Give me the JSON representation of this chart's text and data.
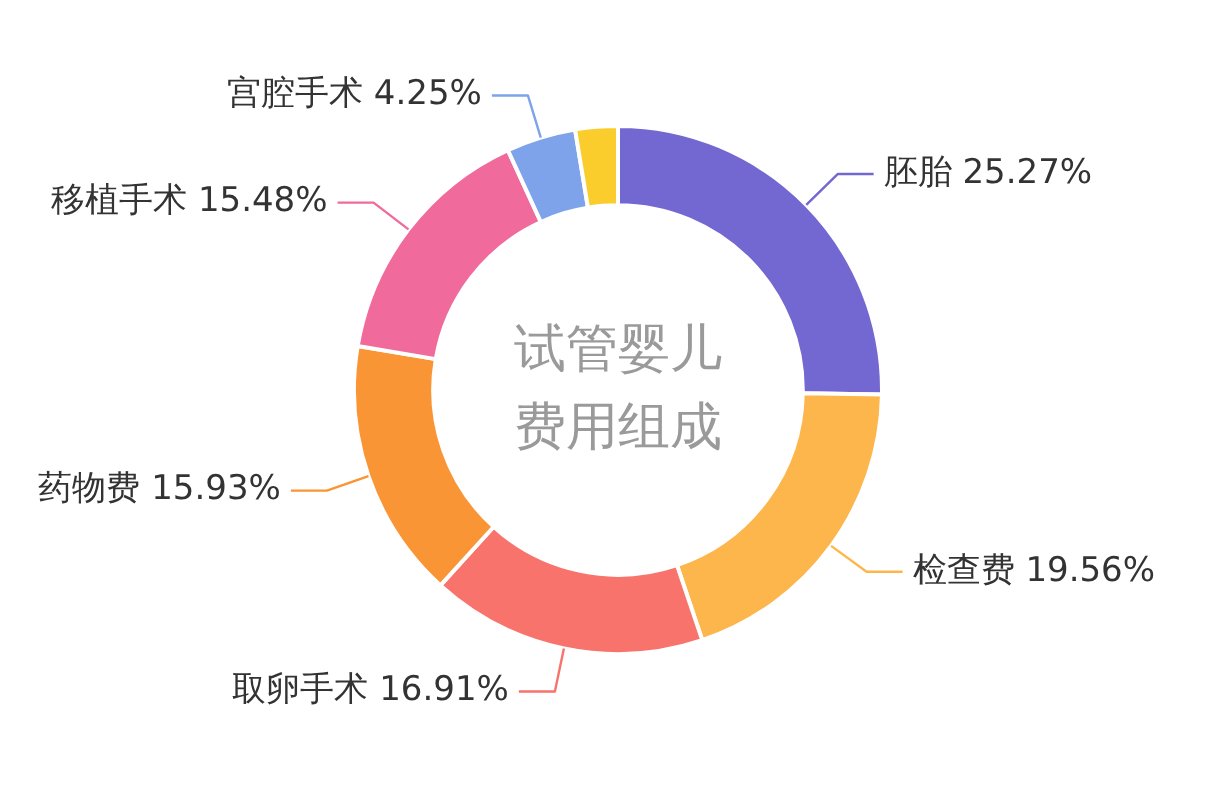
{
  "chart_data": {
    "type": "donut",
    "title": "试管婴儿费用组成",
    "categories": [
      "胚胎",
      "检查费",
      "取卵手术",
      "药物费",
      "移植手术",
      "宫腔手术",
      null
    ],
    "values": [
      25.27,
      19.56,
      16.91,
      15.93,
      15.48,
      4.25,
      2.6
    ],
    "colors": [
      "#7367d1",
      "#fdb64b",
      "#f7736c",
      "#fa9535",
      "#f06b9c",
      "#7ea3ea",
      "#fbcd2c"
    ],
    "value_labels": [
      "25.27%",
      "19.56%",
      "16.91%",
      "15.93%",
      "15.48%",
      "4.25%",
      null
    ],
    "legend": false
  }
}
